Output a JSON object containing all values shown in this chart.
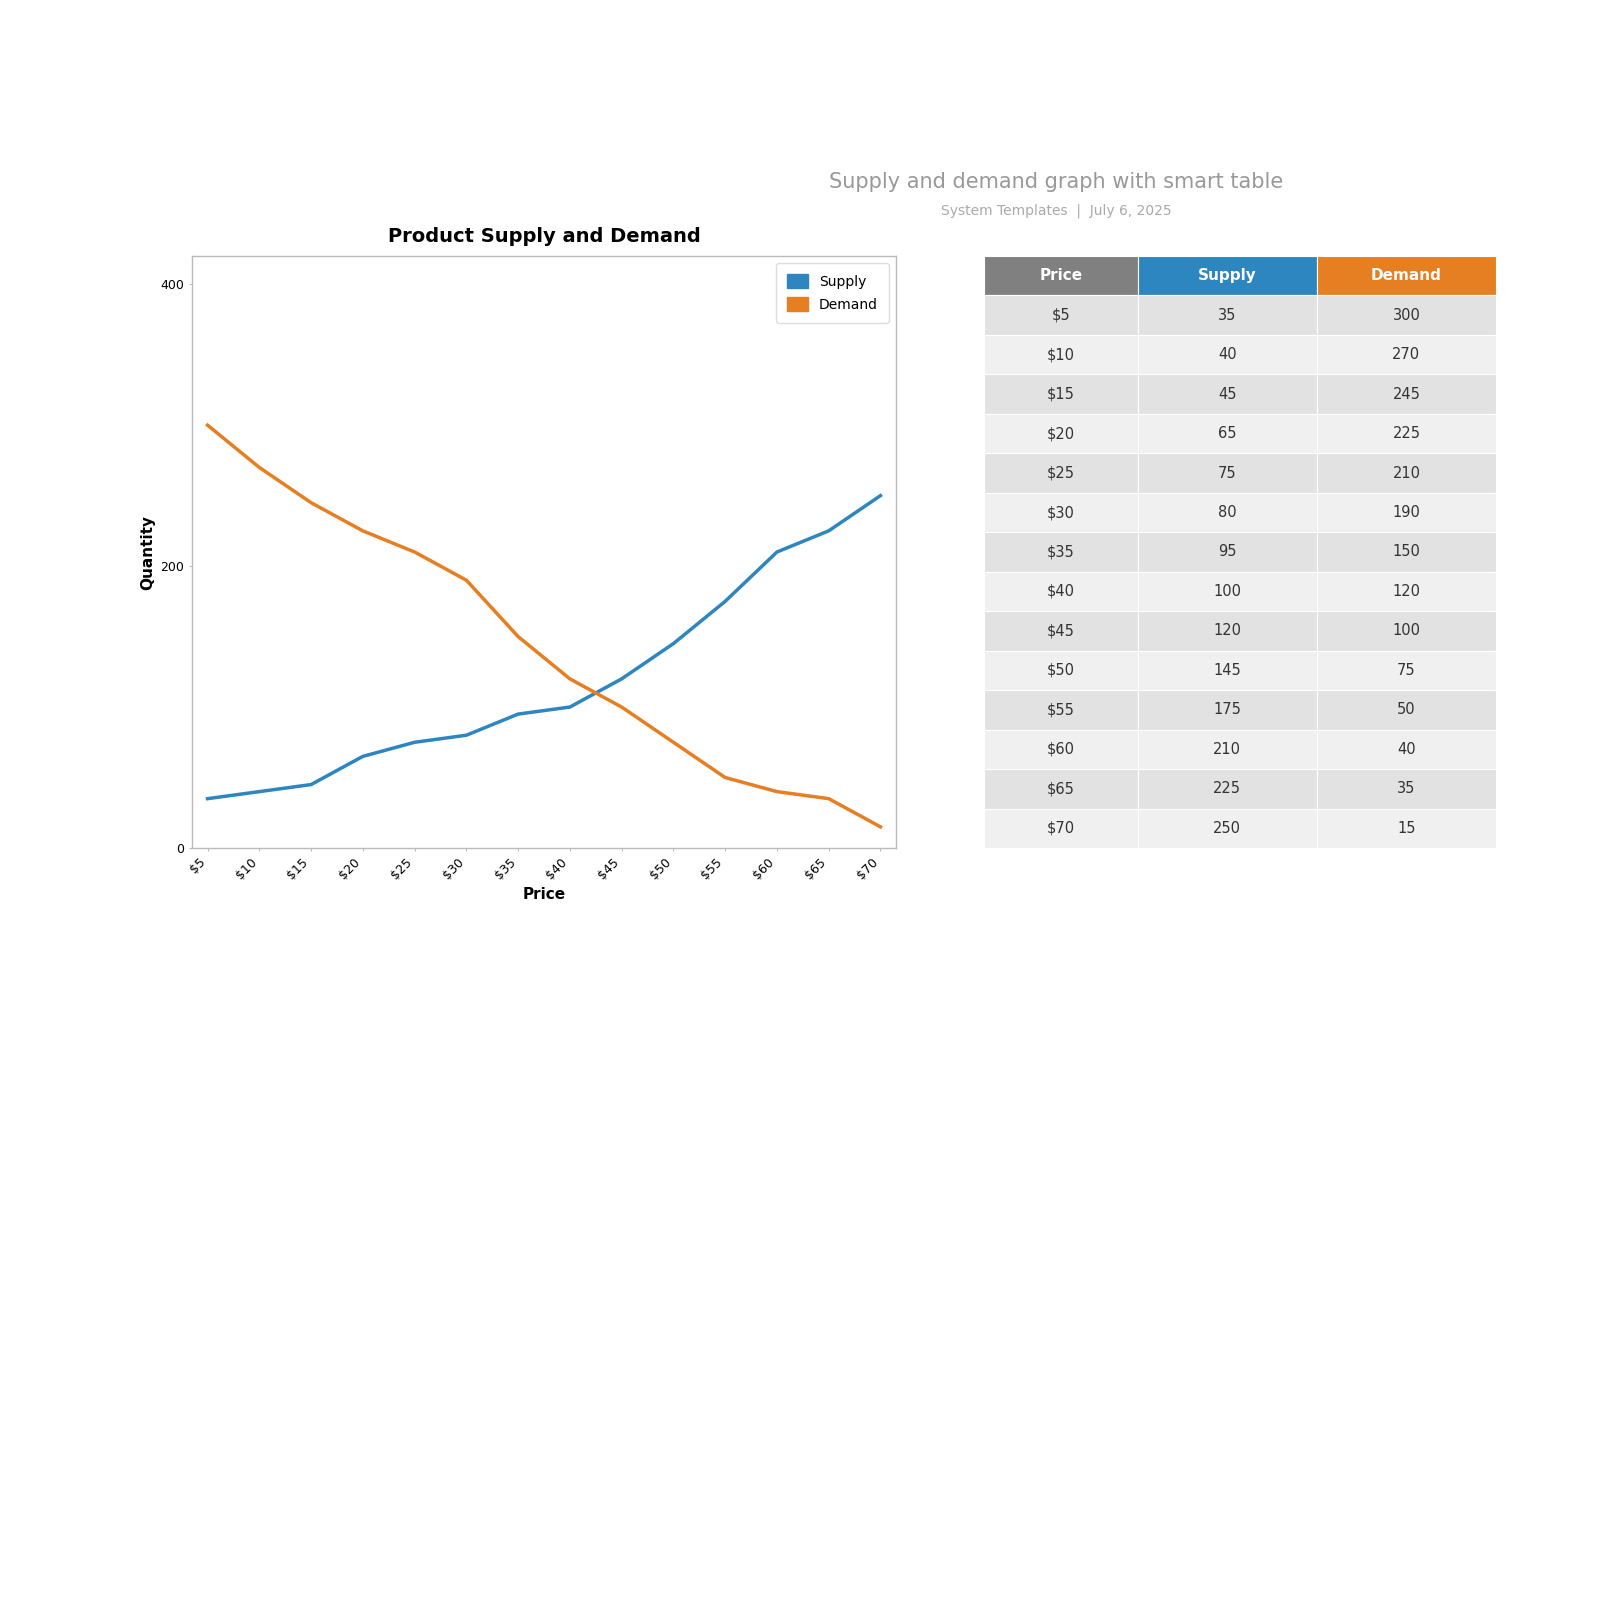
{
  "title": "Supply and demand graph with smart table",
  "subtitle": "System Templates  |  July 6, 2025",
  "chart_title": "Product Supply and Demand",
  "xlabel": "Price",
  "ylabel": "Quantity",
  "prices": [
    "$5",
    "$10",
    "$15",
    "$20",
    "$25",
    "$30",
    "$35",
    "$40",
    "$45",
    "$50",
    "$55",
    "$60",
    "$65",
    "$70"
  ],
  "supply": [
    35,
    40,
    45,
    65,
    75,
    80,
    95,
    100,
    120,
    145,
    175,
    210,
    225,
    250
  ],
  "demand": [
    300,
    270,
    245,
    225,
    210,
    190,
    150,
    120,
    100,
    75,
    50,
    40,
    35,
    15
  ],
  "supply_color": "#2e86c1",
  "demand_color": "#e67e22",
  "table_header_price_color": "#808080",
  "table_header_supply_color": "#2e86c1",
  "table_header_demand_color": "#e67e22",
  "table_row_light_color": "#f0f0f0",
  "table_row_dark_color": "#e2e2e2",
  "title_color": "#999999",
  "subtitle_color": "#aaaaaa",
  "background_color": "#ffffff",
  "ylim": [
    0,
    420
  ],
  "chart_border_color": "#bbbbbb",
  "title_underline_color": "#cccccc"
}
